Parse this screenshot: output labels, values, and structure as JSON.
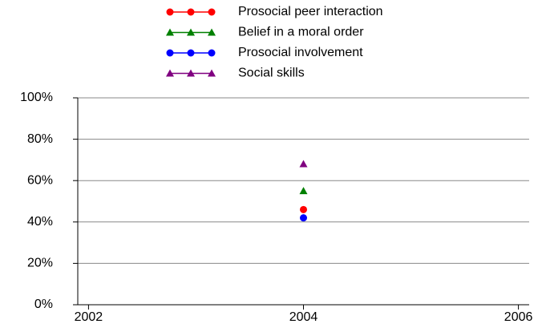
{
  "chart_data": {
    "type": "line",
    "x": [
      2004
    ],
    "series": [
      {
        "name": "Prosocial peer interaction",
        "color": "#ff0000",
        "marker": "circle",
        "values": [
          46
        ]
      },
      {
        "name": "Belief in a moral order",
        "color": "#008000",
        "marker": "triangle",
        "values": [
          55
        ]
      },
      {
        "name": "Prosocial involvement",
        "color": "#0000ff",
        "marker": "circle",
        "values": [
          42
        ]
      },
      {
        "name": "Social skills",
        "color": "#800080",
        "marker": "triangle",
        "values": [
          68
        ]
      }
    ],
    "xlim": [
      2001.9,
      2006.1
    ],
    "xticks": [
      2002,
      2004,
      2006
    ],
    "ylim": [
      0,
      100
    ],
    "yticks": [
      {
        "value": 0,
        "label": "0%"
      },
      {
        "value": 20,
        "label": "20%"
      },
      {
        "value": 40,
        "label": "40%"
      },
      {
        "value": 60,
        "label": "60%"
      },
      {
        "value": 80,
        "label": "80%"
      },
      {
        "value": 100,
        "label": "100%"
      }
    ],
    "grid": true,
    "legend": "top"
  }
}
